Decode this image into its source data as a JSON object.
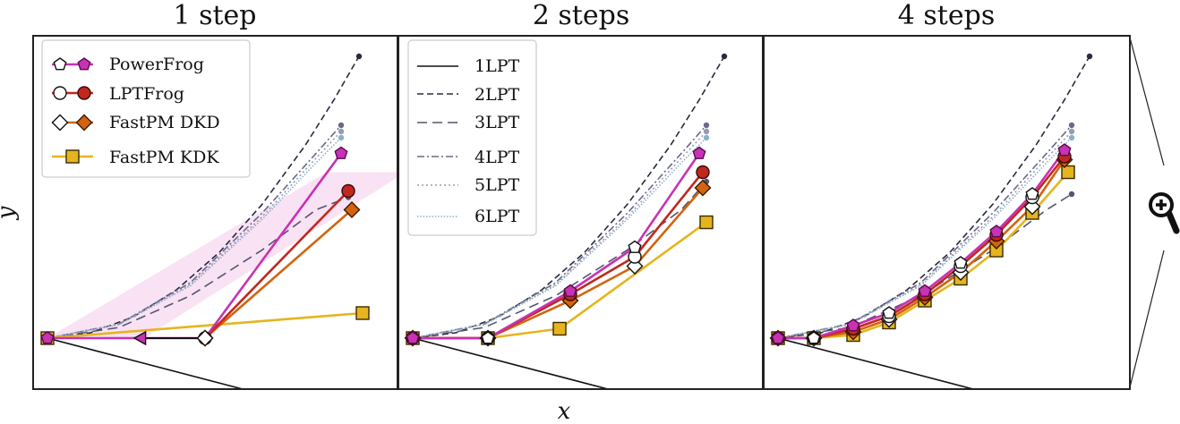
{
  "figure": {
    "xlabel": "x",
    "ylabel": "y",
    "zoom_icon": "zoom-in-magnifier-icon"
  },
  "legend_methods": [
    {
      "label": "PowerFrog",
      "color": "#c832b4",
      "marker": "pentagon"
    },
    {
      "label": "LPTFrog",
      "color": "#c0281e",
      "marker": "circle"
    },
    {
      "label": "FastPM DKD",
      "color": "#d2640f",
      "marker": "diamond"
    },
    {
      "label": "FastPM KDK",
      "color": "#e6b41e",
      "marker": "square"
    }
  ],
  "legend_lpt": [
    {
      "label": "1LPT",
      "dash": "solid"
    },
    {
      "label": "2LPT",
      "dash": "dashed"
    },
    {
      "label": "3LPT",
      "dash": "long-dash"
    },
    {
      "label": "4LPT",
      "dash": "dash-dot"
    },
    {
      "label": "5LPT",
      "dash": "dotted"
    },
    {
      "label": "6LPT",
      "dash": "dense-dotted"
    }
  ],
  "chart_data": [
    {
      "type": "line",
      "title": "1 step",
      "xlabel": "x",
      "ylabel": "y",
      "xlim": [
        0,
        1
      ],
      "ylim": [
        0,
        1
      ],
      "grid": false,
      "shaded_region": {
        "color": "#e896d8",
        "points": [
          [
            0.27,
            0.0
          ],
          [
            1.0,
            0.53
          ],
          [
            0.78,
            0.53
          ],
          [
            0.0,
            0.0
          ]
        ]
      },
      "reference_curves": [
        {
          "name": "1LPT",
          "points": [
            [
              0.0,
              0.0
            ],
            [
              0.87,
              -0.26
            ]
          ]
        },
        {
          "name": "2LPT",
          "points": [
            [
              0.0,
              0.0
            ],
            [
              0.12,
              0.017
            ],
            [
              0.24,
              0.068
            ],
            [
              0.36,
              0.154
            ],
            [
              0.48,
              0.274
            ],
            [
              0.6,
              0.428
            ],
            [
              0.72,
              0.616
            ],
            [
              0.8,
              0.761
            ],
            [
              0.87,
              0.9
            ]
          ]
        },
        {
          "name": "3LPT",
          "points": [
            [
              0.0,
              0.0
            ],
            [
              0.2,
              0.034
            ],
            [
              0.4,
              0.136
            ],
            [
              0.6,
              0.282
            ],
            [
              0.75,
              0.41
            ],
            [
              0.84,
              0.45
            ]
          ]
        },
        {
          "name": "4LPT",
          "points": [
            [
              0.0,
              0.0
            ],
            [
              0.2,
              0.045
            ],
            [
              0.4,
              0.178
            ],
            [
              0.6,
              0.4
            ],
            [
              0.75,
              0.59
            ],
            [
              0.82,
              0.68
            ]
          ]
        },
        {
          "name": "5LPT",
          "points": [
            [
              0.0,
              0.0
            ],
            [
              0.2,
              0.044
            ],
            [
              0.4,
              0.172
            ],
            [
              0.6,
              0.388
            ],
            [
              0.75,
              0.575
            ],
            [
              0.82,
              0.66
            ]
          ]
        },
        {
          "name": "6LPT",
          "points": [
            [
              0.0,
              0.0
            ],
            [
              0.2,
              0.043
            ],
            [
              0.4,
              0.168
            ],
            [
              0.6,
              0.38
            ],
            [
              0.75,
              0.56
            ],
            [
              0.82,
              0.64
            ]
          ]
        }
      ],
      "series": [
        {
          "name": "PowerFrog",
          "points": [
            [
              0.0,
              0.0
            ],
            [
              0.26,
              0.0
            ],
            [
              0.44,
              0.0
            ],
            [
              0.82,
              0.59
            ]
          ],
          "markers": [
            "pentagon",
            "triangle-left",
            "diamond",
            "pentagon"
          ]
        },
        {
          "name": "LPTFrog",
          "points": [
            [
              0.44,
              0.0
            ],
            [
              0.84,
              0.47
            ]
          ]
        },
        {
          "name": "FastPM DKD",
          "points": [
            [
              0.44,
              0.0
            ],
            [
              0.85,
              0.41
            ]
          ]
        },
        {
          "name": "FastPM KDK",
          "points": [
            [
              0.0,
              0.0
            ],
            [
              0.88,
              0.08
            ]
          ]
        }
      ]
    },
    {
      "type": "line",
      "title": "2 steps",
      "xlabel": "x",
      "ylabel": "y",
      "xlim": [
        0,
        1
      ],
      "ylim": [
        0,
        1
      ],
      "grid": false,
      "reference_curves": [
        {
          "name": "1LPT",
          "points": [
            [
              0.0,
              0.0
            ],
            [
              0.87,
              -0.26
            ]
          ]
        },
        {
          "name": "2LPT",
          "points": [
            [
              0.0,
              0.0
            ],
            [
              0.12,
              0.017
            ],
            [
              0.24,
              0.068
            ],
            [
              0.36,
              0.154
            ],
            [
              0.48,
              0.274
            ],
            [
              0.6,
              0.428
            ],
            [
              0.72,
              0.616
            ],
            [
              0.8,
              0.761
            ],
            [
              0.87,
              0.9
            ]
          ]
        },
        {
          "name": "3LPT",
          "points": [
            [
              0.0,
              0.0
            ],
            [
              0.2,
              0.034
            ],
            [
              0.4,
              0.136
            ],
            [
              0.6,
              0.282
            ],
            [
              0.75,
              0.41
            ],
            [
              0.82,
              0.5
            ]
          ]
        },
        {
          "name": "4LPT",
          "points": [
            [
              0.0,
              0.0
            ],
            [
              0.2,
              0.045
            ],
            [
              0.4,
              0.178
            ],
            [
              0.6,
              0.4
            ],
            [
              0.75,
              0.59
            ],
            [
              0.82,
              0.68
            ]
          ]
        },
        {
          "name": "5LPT",
          "points": [
            [
              0.0,
              0.0
            ],
            [
              0.2,
              0.044
            ],
            [
              0.4,
              0.172
            ],
            [
              0.6,
              0.388
            ],
            [
              0.75,
              0.575
            ],
            [
              0.82,
              0.66
            ]
          ]
        },
        {
          "name": "6LPT",
          "points": [
            [
              0.0,
              0.0
            ],
            [
              0.2,
              0.043
            ],
            [
              0.4,
              0.168
            ],
            [
              0.6,
              0.38
            ],
            [
              0.75,
              0.56
            ],
            [
              0.82,
              0.64
            ]
          ]
        }
      ],
      "series": [
        {
          "name": "PowerFrog",
          "points": [
            [
              0.0,
              0.0
            ],
            [
              0.21,
              0.0
            ],
            [
              0.44,
              0.15
            ],
            [
              0.62,
              0.29
            ],
            [
              0.8,
              0.59
            ]
          ]
        },
        {
          "name": "LPTFrog",
          "points": [
            [
              0.0,
              0.0
            ],
            [
              0.21,
              0.0
            ],
            [
              0.44,
              0.14
            ],
            [
              0.62,
              0.26
            ],
            [
              0.81,
              0.53
            ]
          ]
        },
        {
          "name": "FastPM DKD",
          "points": [
            [
              0.0,
              0.0
            ],
            [
              0.21,
              0.0
            ],
            [
              0.44,
              0.12
            ],
            [
              0.62,
              0.23
            ],
            [
              0.81,
              0.48
            ]
          ]
        },
        {
          "name": "FastPM KDK",
          "points": [
            [
              0.0,
              0.0
            ],
            [
              0.21,
              0.0
            ],
            [
              0.41,
              0.03
            ],
            [
              0.82,
              0.37
            ]
          ]
        }
      ]
    },
    {
      "type": "line",
      "title": "4 steps",
      "xlabel": "x",
      "ylabel": "y",
      "xlim": [
        0,
        1
      ],
      "ylim": [
        0,
        1
      ],
      "grid": false,
      "reference_curves": [
        {
          "name": "1LPT",
          "points": [
            [
              0.0,
              0.0
            ],
            [
              0.87,
              -0.26
            ]
          ]
        },
        {
          "name": "2LPT",
          "points": [
            [
              0.0,
              0.0
            ],
            [
              0.12,
              0.017
            ],
            [
              0.24,
              0.068
            ],
            [
              0.36,
              0.154
            ],
            [
              0.48,
              0.274
            ],
            [
              0.6,
              0.428
            ],
            [
              0.72,
              0.616
            ],
            [
              0.8,
              0.761
            ],
            [
              0.87,
              0.9
            ]
          ]
        },
        {
          "name": "3LPT",
          "points": [
            [
              0.0,
              0.0
            ],
            [
              0.2,
              0.034
            ],
            [
              0.4,
              0.136
            ],
            [
              0.6,
              0.282
            ],
            [
              0.75,
              0.41
            ],
            [
              0.82,
              0.46
            ]
          ]
        },
        {
          "name": "4LPT",
          "points": [
            [
              0.0,
              0.0
            ],
            [
              0.2,
              0.045
            ],
            [
              0.4,
              0.178
            ],
            [
              0.6,
              0.4
            ],
            [
              0.75,
              0.59
            ],
            [
              0.82,
              0.68
            ]
          ]
        },
        {
          "name": "5LPT",
          "points": [
            [
              0.0,
              0.0
            ],
            [
              0.2,
              0.044
            ],
            [
              0.4,
              0.172
            ],
            [
              0.6,
              0.388
            ],
            [
              0.75,
              0.575
            ],
            [
              0.82,
              0.66
            ]
          ]
        },
        {
          "name": "6LPT",
          "points": [
            [
              0.0,
              0.0
            ],
            [
              0.2,
              0.043
            ],
            [
              0.4,
              0.168
            ],
            [
              0.6,
              0.38
            ],
            [
              0.75,
              0.56
            ],
            [
              0.82,
              0.64
            ]
          ]
        }
      ],
      "series": [
        {
          "name": "PowerFrog",
          "points": [
            [
              0.0,
              0.0
            ],
            [
              0.1,
              0.0
            ],
            [
              0.21,
              0.04
            ],
            [
              0.31,
              0.08
            ],
            [
              0.41,
              0.15
            ],
            [
              0.51,
              0.24
            ],
            [
              0.61,
              0.34
            ],
            [
              0.71,
              0.46
            ],
            [
              0.8,
              0.6
            ]
          ]
        },
        {
          "name": "LPTFrog",
          "points": [
            [
              0.0,
              0.0
            ],
            [
              0.1,
              0.0
            ],
            [
              0.21,
              0.03
            ],
            [
              0.31,
              0.07
            ],
            [
              0.41,
              0.14
            ],
            [
              0.51,
              0.23
            ],
            [
              0.61,
              0.33
            ],
            [
              0.71,
              0.45
            ],
            [
              0.8,
              0.58
            ]
          ]
        },
        {
          "name": "FastPM DKD",
          "points": [
            [
              0.0,
              0.0
            ],
            [
              0.1,
              0.0
            ],
            [
              0.21,
              0.02
            ],
            [
              0.31,
              0.06
            ],
            [
              0.41,
              0.13
            ],
            [
              0.51,
              0.21
            ],
            [
              0.61,
              0.31
            ],
            [
              0.71,
              0.42
            ],
            [
              0.8,
              0.57
            ]
          ]
        },
        {
          "name": "FastPM KDK",
          "points": [
            [
              0.0,
              0.0
            ],
            [
              0.1,
              0.0
            ],
            [
              0.21,
              0.01
            ],
            [
              0.31,
              0.05
            ],
            [
              0.41,
              0.12
            ],
            [
              0.51,
              0.19
            ],
            [
              0.61,
              0.28
            ],
            [
              0.71,
              0.4
            ],
            [
              0.81,
              0.53
            ]
          ]
        }
      ]
    }
  ]
}
